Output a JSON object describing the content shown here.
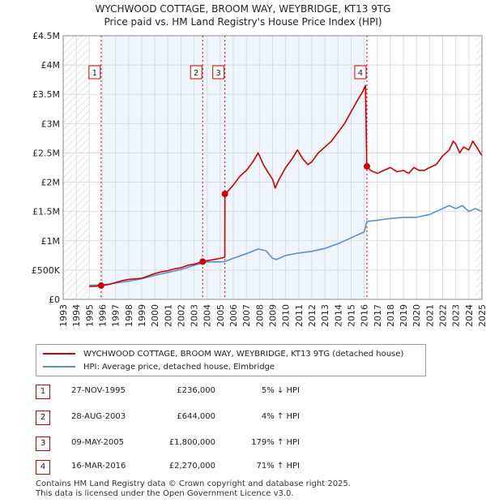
{
  "title_line1": "WYCHWOOD COTTAGE, BROOM WAY, WEYBRIDGE, KT13 9TG",
  "title_line2": "Price paid vs. HM Land Registry's House Price Index (HPI)",
  "chart_data": {
    "type": "line",
    "xlim": [
      1993,
      2025
    ],
    "ylim": [
      0,
      4500000
    ],
    "y_ticks": [
      0,
      500000,
      1000000,
      1500000,
      2000000,
      2500000,
      3000000,
      3500000,
      4000000,
      4500000
    ],
    "y_tick_labels": [
      "£0",
      "£500K",
      "£1M",
      "£1.5M",
      "£2M",
      "£2.5M",
      "£3M",
      "£3.5M",
      "£4M",
      "£4.5M"
    ],
    "x_tick_labels": [
      "1993",
      "1994",
      "1995",
      "1996",
      "1997",
      "1998",
      "1999",
      "2000",
      "2001",
      "2002",
      "2003",
      "2004",
      "2005",
      "2006",
      "2007",
      "2008",
      "2009",
      "2010",
      "2011",
      "2012",
      "2013",
      "2014",
      "2015",
      "2016",
      "2017",
      "2018",
      "2019",
      "2020",
      "2021",
      "2022",
      "2023",
      "2024",
      "2025"
    ],
    "grid": true,
    "hatched_ranges": [
      [
        1993,
        1995.0
      ],
      [
        2024.5,
        2025
      ]
    ],
    "series": [
      {
        "name": "WYCHWOOD COTTAGE, BROOM WAY, WEYBRIDGE, KT13 9TG (detached house)",
        "color": "#cc0000",
        "x": [
          1995.0,
          1995.5,
          1995.9,
          1996.5,
          1997.0,
          1997.5,
          1998.0,
          1999.0,
          1999.5,
          2000.0,
          2000.5,
          2001.0,
          2001.5,
          2002.0,
          2002.5,
          2003.0,
          2003.66,
          2004.0,
          2004.5,
          2005.0,
          2005.35,
          2005.36,
          2005.6,
          2006.0,
          2006.5,
          2007.0,
          2007.5,
          2007.9,
          2008.3,
          2008.7,
          2009.0,
          2009.2,
          2009.5,
          2010.0,
          2010.5,
          2010.9,
          2011.3,
          2011.7,
          2012.0,
          2012.5,
          2013.0,
          2013.5,
          2014.0,
          2014.5,
          2015.0,
          2015.5,
          2015.9,
          2016.1,
          2016.2,
          2016.21,
          2016.5,
          2017.0,
          2017.5,
          2018.0,
          2018.5,
          2019.0,
          2019.4,
          2019.8,
          2020.2,
          2020.6,
          2021.0,
          2021.5,
          2022.0,
          2022.5,
          2022.8,
          2023.0,
          2023.3,
          2023.6,
          2024.0,
          2024.3,
          2024.6,
          2025.0
        ],
        "values": [
          220000,
          225000,
          236000,
          255000,
          285000,
          320000,
          340000,
          360000,
          400000,
          440000,
          470000,
          490000,
          520000,
          540000,
          580000,
          600000,
          644000,
          660000,
          680000,
          700000,
          720000,
          1800000,
          1850000,
          1950000,
          2100000,
          2200000,
          2350000,
          2500000,
          2300000,
          2150000,
          2050000,
          1900000,
          2050000,
          2250000,
          2400000,
          2550000,
          2400000,
          2300000,
          2350000,
          2500000,
          2600000,
          2700000,
          2850000,
          3000000,
          3200000,
          3400000,
          3550000,
          3650000,
          2300000,
          2270000,
          2200000,
          2150000,
          2200000,
          2250000,
          2180000,
          2200000,
          2150000,
          2250000,
          2200000,
          2200000,
          2250000,
          2300000,
          2450000,
          2550000,
          2700000,
          2650000,
          2500000,
          2600000,
          2550000,
          2700000,
          2600000,
          2450000
        ]
      },
      {
        "name": "HPI: Average price, detached house, Elmbridge",
        "color": "#5b8fd0",
        "x": [
          1995.0,
          1995.9,
          1996.5,
          1997.0,
          1998.0,
          1999.0,
          2000.0,
          2001.0,
          2002.0,
          2003.0,
          2003.66,
          2004.0,
          2005.0,
          2005.36,
          2006.0,
          2007.0,
          2007.9,
          2008.5,
          2009.0,
          2009.3,
          2010.0,
          2011.0,
          2012.0,
          2013.0,
          2014.0,
          2014.5,
          2015.0,
          2016.0,
          2016.21,
          2017.0,
          2018.0,
          2019.0,
          2020.0,
          2021.0,
          2022.0,
          2022.5,
          2023.0,
          2023.5,
          2024.0,
          2024.5,
          2025.0
        ],
        "values": [
          240000,
          248000,
          260000,
          280000,
          310000,
          350000,
          410000,
          460000,
          510000,
          580000,
          620000,
          640000,
          640000,
          645000,
          700000,
          780000,
          860000,
          830000,
          700000,
          680000,
          750000,
          790000,
          820000,
          870000,
          950000,
          1000000,
          1050000,
          1150000,
          1330000,
          1350000,
          1380000,
          1400000,
          1400000,
          1450000,
          1550000,
          1600000,
          1550000,
          1600000,
          1500000,
          1550000,
          1500000
        ]
      }
    ],
    "sales": [
      {
        "label": "1",
        "x": 1995.9,
        "value": 236000
      },
      {
        "label": "2",
        "x": 2003.66,
        "value": 644000
      },
      {
        "label": "3",
        "x": 2005.36,
        "value": 1800000
      },
      {
        "label": "4",
        "x": 2016.21,
        "value": 2270000
      }
    ]
  },
  "legend": {
    "property": "WYCHWOOD COTTAGE, BROOM WAY, WEYBRIDGE, KT13 9TG (detached house)",
    "hpi": "HPI: Average price, detached house, Elmbridge"
  },
  "transactions": [
    {
      "num": "1",
      "date": "27-NOV-1995",
      "price": "£236,000",
      "hpi": "5% ↓ HPI"
    },
    {
      "num": "2",
      "date": "28-AUG-2003",
      "price": "£644,000",
      "hpi": "4% ↑ HPI"
    },
    {
      "num": "3",
      "date": "09-MAY-2005",
      "price": "£1,800,000",
      "hpi": "179% ↑ HPI"
    },
    {
      "num": "4",
      "date": "16-MAR-2016",
      "price": "£2,270,000",
      "hpi": "71% ↑ HPI"
    }
  ],
  "footer_line1": "Contains HM Land Registry data © Crown copyright and database right 2025.",
  "footer_line2": "This data is licensed under the Open Government Licence v3.0.",
  "colors": {
    "property": "#cc0000",
    "hpi": "#5b8fd0",
    "grid": "#dddddd",
    "plot_bg": "#ffffff"
  }
}
